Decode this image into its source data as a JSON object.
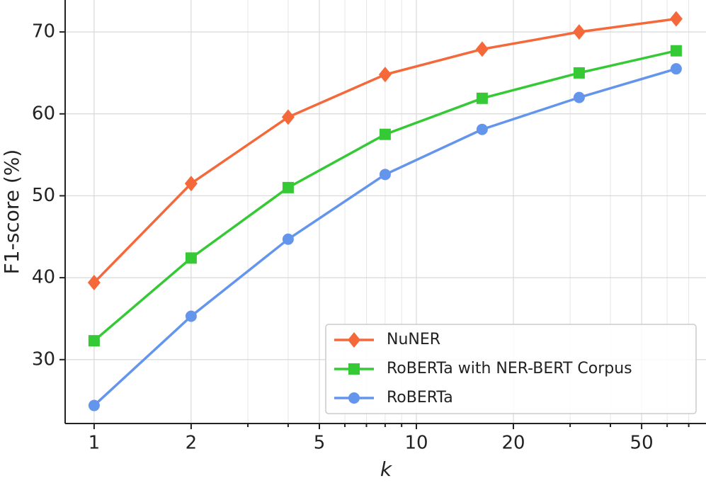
{
  "chart_data": {
    "type": "line",
    "x_label": "k",
    "y_label": "F1-score (%)",
    "x": [
      1,
      2,
      4,
      8,
      16,
      32,
      64
    ],
    "xscale": "log",
    "xlim": [
      0.813,
      79.2
    ],
    "ylim": [
      22.2,
      73.9
    ],
    "xticks": [
      1,
      2,
      5,
      10,
      20,
      50
    ],
    "xminor": [
      3,
      4,
      6,
      7,
      8,
      9,
      30,
      40,
      60,
      70
    ],
    "yticks": [
      30,
      40,
      50,
      60,
      70
    ],
    "grid": true,
    "legend": "lower right",
    "series": [
      {
        "name": "NuNER",
        "color": "#f4683a",
        "marker": "diamond",
        "values": [
          39.4,
          51.5,
          59.6,
          64.8,
          67.9,
          70.0,
          71.6
        ]
      },
      {
        "name": "RoBERTa with NER-BERT Corpus",
        "color": "#36c936",
        "marker": "square",
        "values": [
          32.3,
          42.4,
          51.0,
          57.5,
          61.9,
          65.0,
          67.7
        ]
      },
      {
        "name": "RoBERTa",
        "color": "#6495ed",
        "marker": "circle",
        "values": [
          24.4,
          35.3,
          44.7,
          52.6,
          58.1,
          62.0,
          65.5
        ]
      }
    ]
  }
}
